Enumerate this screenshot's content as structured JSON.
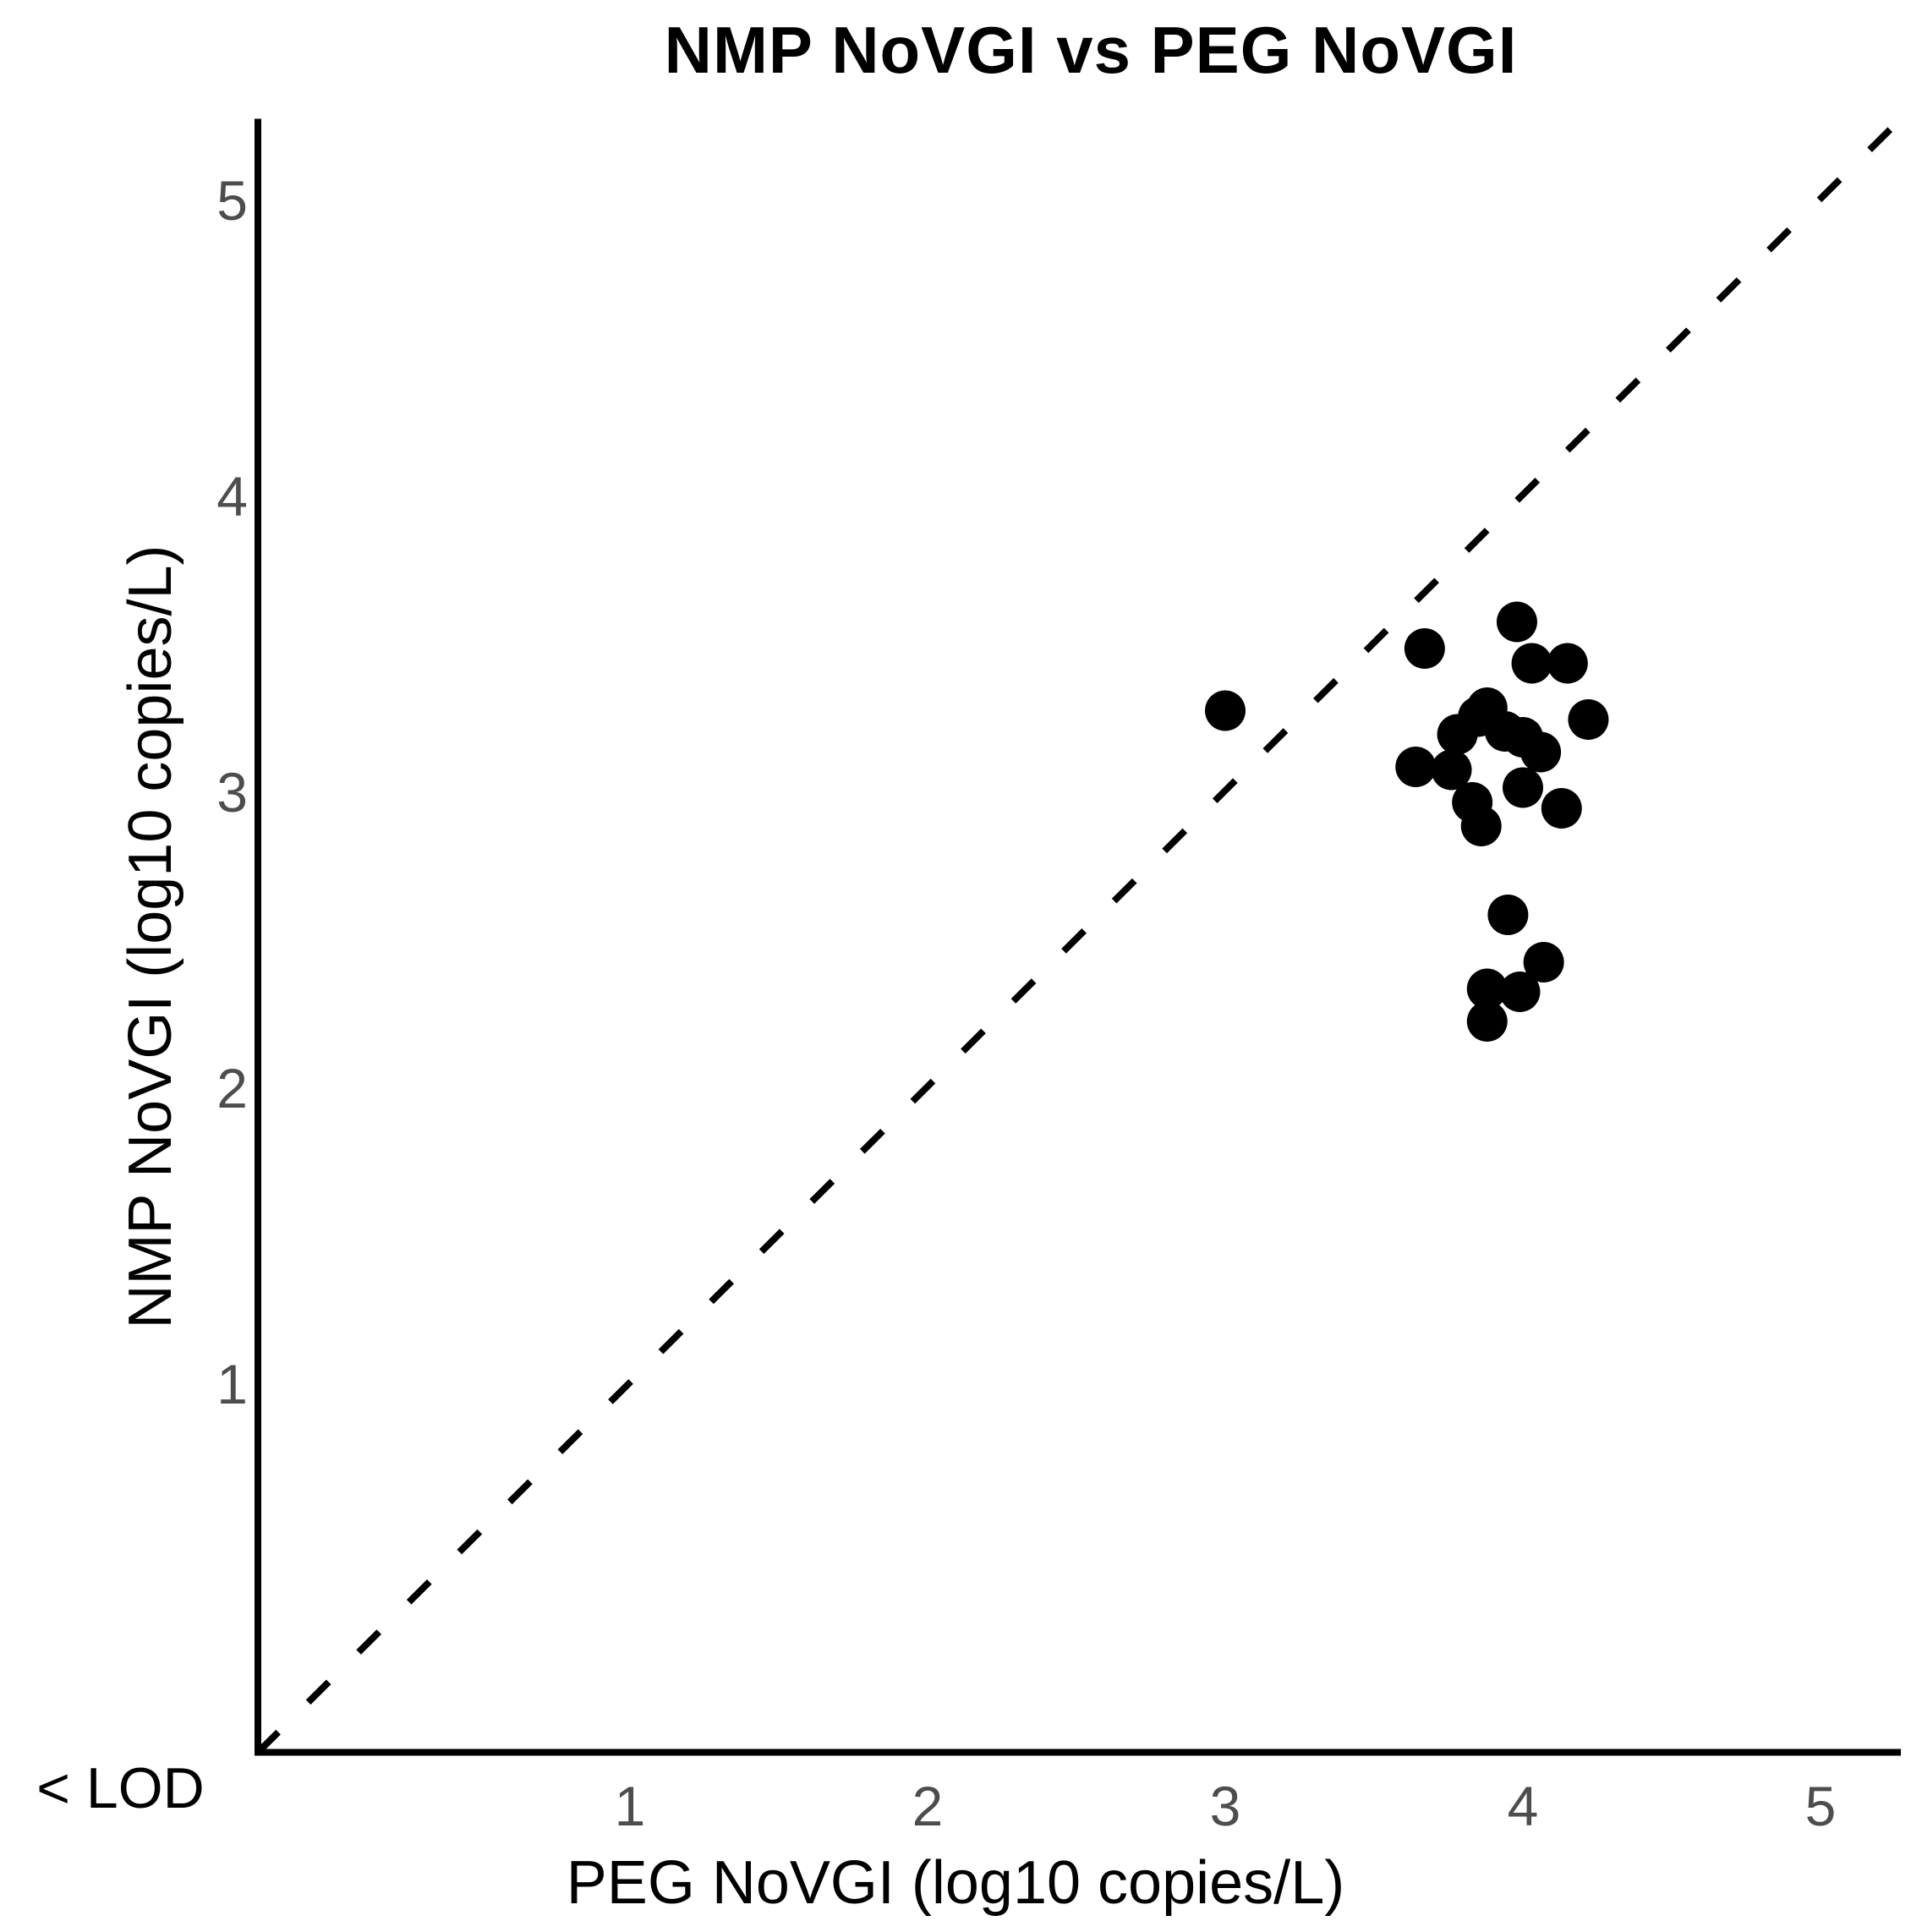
{
  "title": "NMP NoVGI vs PEG NoVGI",
  "x_axis": {
    "label": "PEG NoVGI (log10 copies/L)",
    "ticks": [
      "1",
      "2",
      "3",
      "4",
      "5"
    ]
  },
  "y_axis": {
    "label": "NMP NoVGI (log10 copies/L)",
    "ticks": [
      "1",
      "2",
      "3",
      "4",
      "5"
    ]
  },
  "lod_label": "< LOD",
  "colors": {
    "marker": "#000000",
    "axis": "#000000",
    "tick_text": "#4d4d4d",
    "background": "#ffffff"
  },
  "chart_data": {
    "type": "scatter",
    "title": "NMP NoVGI vs PEG NoVGI",
    "xlabel": "PEG NoVGI (log10 copies/L)",
    "ylabel": "NMP NoVGI (log10 copies/L)",
    "xlim": [
      -0.25,
      5.27
    ],
    "ylim": [
      -0.25,
      5.27
    ],
    "x_ticks": [
      1,
      2,
      3,
      4,
      5
    ],
    "y_ticks": [
      1,
      2,
      3,
      4,
      5
    ],
    "grid": false,
    "legend": "none",
    "below_lod_annotation": "< LOD",
    "identity_line": {
      "style": "dashed",
      "x1": -0.25,
      "y1": -0.25,
      "x2": 5.27,
      "y2": 5.27
    },
    "marker": {
      "shape": "circle",
      "color": "#000000",
      "radius_px": 24
    },
    "points": [
      {
        "x": 3.0,
        "y": 3.27
      },
      {
        "x": 3.67,
        "y": 3.48
      },
      {
        "x": 3.98,
        "y": 3.57
      },
      {
        "x": 4.03,
        "y": 3.43
      },
      {
        "x": 4.15,
        "y": 3.43
      },
      {
        "x": 4.22,
        "y": 3.24
      },
      {
        "x": 3.88,
        "y": 3.28
      },
      {
        "x": 3.85,
        "y": 3.25
      },
      {
        "x": 3.78,
        "y": 3.19
      },
      {
        "x": 3.94,
        "y": 3.2
      },
      {
        "x": 4.0,
        "y": 3.18
      },
      {
        "x": 4.06,
        "y": 3.13
      },
      {
        "x": 3.64,
        "y": 3.08
      },
      {
        "x": 3.76,
        "y": 3.07
      },
      {
        "x": 4.0,
        "y": 3.01
      },
      {
        "x": 3.83,
        "y": 2.96
      },
      {
        "x": 4.13,
        "y": 2.94
      },
      {
        "x": 3.86,
        "y": 2.88
      },
      {
        "x": 3.95,
        "y": 2.58
      },
      {
        "x": 4.07,
        "y": 2.42
      },
      {
        "x": 3.88,
        "y": 2.33
      },
      {
        "x": 3.99,
        "y": 2.32
      },
      {
        "x": 3.88,
        "y": 2.22
      }
    ]
  }
}
